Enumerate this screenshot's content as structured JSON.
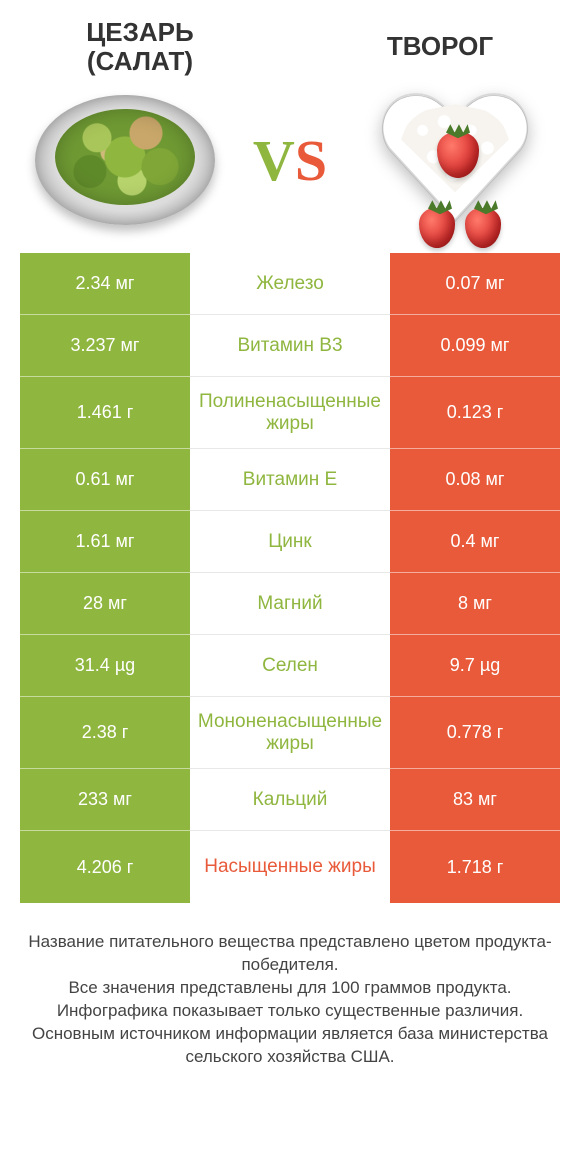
{
  "colors": {
    "left": "#8fb63f",
    "right": "#e85a3a",
    "mid_text_default": "#8fb63f"
  },
  "header": {
    "left_title_line1": "ЦЕЗАРЬ",
    "left_title_line2": "(САЛАТ)",
    "right_title": "ТВОРОГ",
    "vs_v": "V",
    "vs_s": "S"
  },
  "table": {
    "row_height_default": 62,
    "row_height_tall": 72,
    "font_size_value": 18,
    "font_size_label": 19,
    "rows": [
      {
        "left": "2.34 мг",
        "label": "Железо",
        "right": "0.07 мг",
        "winner": "left",
        "tall": false
      },
      {
        "left": "3.237 мг",
        "label": "Витамин B3",
        "right": "0.099 мг",
        "winner": "left",
        "tall": false
      },
      {
        "left": "1.461 г",
        "label": "Полиненасыщенные жиры",
        "right": "0.123 г",
        "winner": "left",
        "tall": true
      },
      {
        "left": "0.61 мг",
        "label": "Витамин E",
        "right": "0.08 мг",
        "winner": "left",
        "tall": false
      },
      {
        "left": "1.61 мг",
        "label": "Цинк",
        "right": "0.4 мг",
        "winner": "left",
        "tall": false
      },
      {
        "left": "28 мг",
        "label": "Магний",
        "right": "8 мг",
        "winner": "left",
        "tall": false
      },
      {
        "left": "31.4 µg",
        "label": "Селен",
        "right": "9.7 µg",
        "winner": "left",
        "tall": false
      },
      {
        "left": "2.38 г",
        "label": "Мононенасыщенные жиры",
        "right": "0.778 г",
        "winner": "left",
        "tall": true
      },
      {
        "left": "233 мг",
        "label": "Кальций",
        "right": "83 мг",
        "winner": "left",
        "tall": false
      },
      {
        "left": "4.206 г",
        "label": "Насыщенные жиры",
        "right": "1.718 г",
        "winner": "right",
        "tall": true
      }
    ]
  },
  "footer": {
    "line1": "Название питательного вещества представлено цветом продукта-победителя.",
    "line2": "Все значения представлены для 100 граммов продукта.",
    "line3": "Инфографика показывает только существенные различия.",
    "line4": "Основным источником информации является база министерства сельского хозяйства США."
  }
}
